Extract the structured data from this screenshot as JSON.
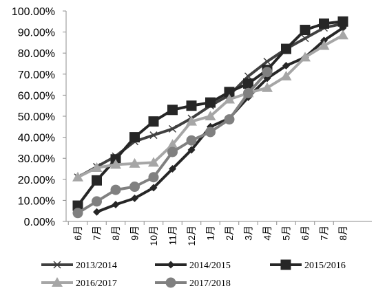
{
  "chart_data": {
    "type": "line",
    "title": "",
    "xlabel": "",
    "ylabel": "",
    "ylim": [
      0,
      100
    ],
    "y_tick_labels": [
      "0.00%",
      "10.00%",
      "20.00%",
      "30.00%",
      "40.00%",
      "50.00%",
      "60.00%",
      "70.00%",
      "80.00%",
      "90.00%",
      "100.00%"
    ],
    "categories": [
      "6月",
      "7月",
      "8月",
      "9月",
      "10月",
      "11月",
      "12月",
      "1月",
      "2月",
      "3月",
      "4月",
      "5月",
      "6月",
      "7月",
      "8月"
    ],
    "grid": false,
    "legend_position": "bottom",
    "series": [
      {
        "name": "2013/2014",
        "color": "#404040",
        "marker": "x",
        "values": [
          21,
          26,
          31,
          38,
          41,
          44,
          49,
          55,
          60,
          69,
          76,
          82,
          87,
          92,
          94
        ]
      },
      {
        "name": "2014/2015",
        "color": "#262626",
        "marker": "diamond",
        "values": [
          null,
          4.5,
          8,
          11,
          16,
          25,
          34,
          45,
          49,
          59,
          68,
          74,
          78,
          86,
          92
        ]
      },
      {
        "name": "2015/2016",
        "color": "#262626",
        "marker": "square",
        "values": [
          7.5,
          19.5,
          29.5,
          40,
          47.5,
          53,
          55,
          56.5,
          61.5,
          65.5,
          72,
          82,
          91,
          94,
          95
        ]
      },
      {
        "name": "2016/2017",
        "color": "#a6a6a6",
        "marker": "triangle",
        "values": [
          21,
          25.5,
          27,
          27.5,
          28,
          36.5,
          47.5,
          50,
          58,
          61,
          63.5,
          69,
          78,
          83.5,
          88.5
        ]
      },
      {
        "name": "2017/2018",
        "color": "#808080",
        "marker": "circle",
        "values": [
          4,
          9.5,
          15,
          16.5,
          21,
          33,
          38.5,
          42.5,
          48.5,
          61,
          71,
          null,
          null,
          null,
          null
        ]
      }
    ]
  }
}
